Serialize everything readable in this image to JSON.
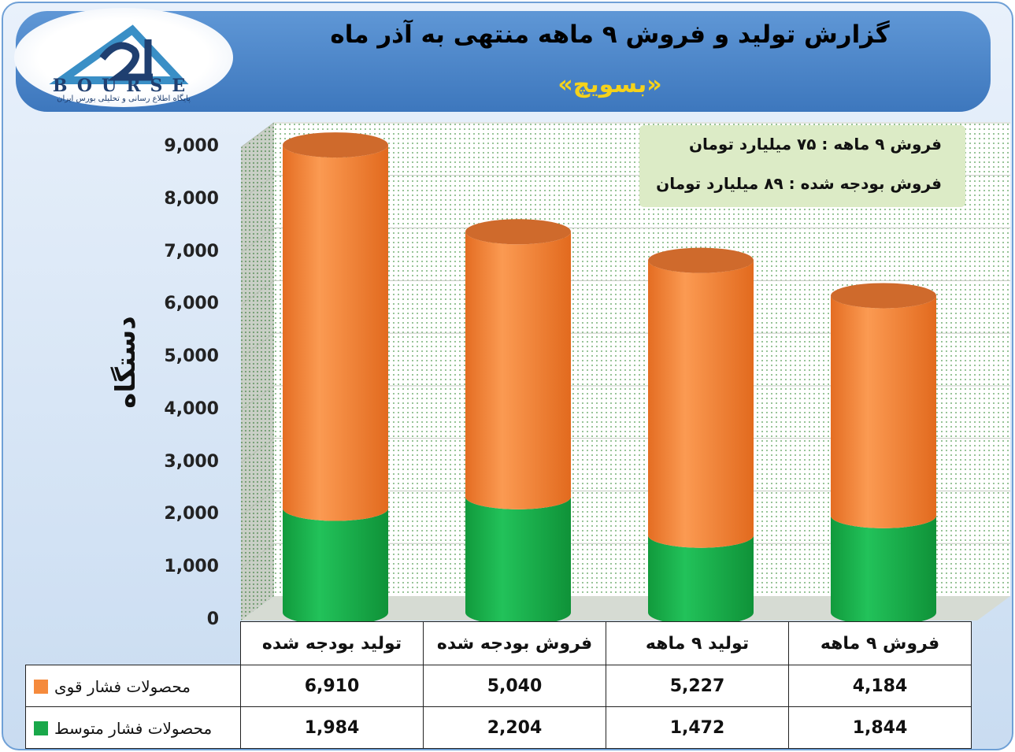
{
  "header": {
    "title": "گزارش تولید و فروش ۹ ماهه منتهی به آذر ماه",
    "subtitle": "«بسویچ»"
  },
  "logo": {
    "word": "BOURSE",
    "tagline": "پایگاه اطلاع رسانی و تحلیلی بورس ایران"
  },
  "info": {
    "line1": "فروش ۹ ماهه : ۷۵ میلیارد تومان",
    "line2": "فروش بودجه شده : ۸۹ میلیارد تومان"
  },
  "colors": {
    "series_strong": "#f58a3c",
    "series_medium": "#19a84a",
    "title_bar": "#4a84c8",
    "subtitle_text": "#f5d21a"
  },
  "chart_data": {
    "type": "bar",
    "stacked": true,
    "ylabel": "دستگاه",
    "ylim": [
      0,
      9000
    ],
    "yticks": [
      "0",
      "1,000",
      "2,000",
      "3,000",
      "4,000",
      "5,000",
      "6,000",
      "7,000",
      "8,000",
      "9,000"
    ],
    "categories": [
      "تولید بودجه شده",
      "فروش بودجه شده",
      "تولید ۹ ماهه",
      "فروش ۹ ماهه"
    ],
    "series": [
      {
        "name": "محصولات فشار متوسط",
        "values": [
          1984,
          2204,
          1472,
          1844
        ],
        "labels": [
          "1,984",
          "2,204",
          "1,472",
          "1,844"
        ]
      },
      {
        "name": "محصولات فشار قوی",
        "values": [
          6910,
          5040,
          5227,
          4184
        ],
        "labels": [
          "6,910",
          "5,040",
          "5,227",
          "4,184"
        ]
      }
    ],
    "grid": true,
    "legend": "table-below"
  }
}
